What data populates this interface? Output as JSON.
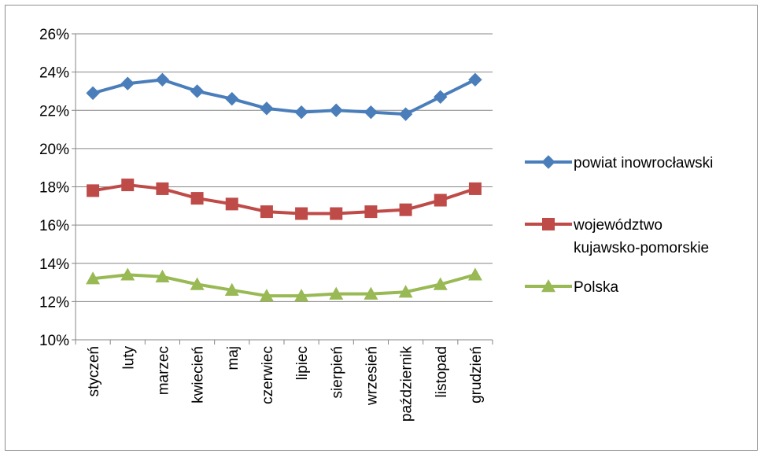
{
  "chart_data": {
    "type": "line",
    "categories": [
      "styczeń",
      "luty",
      "marzec",
      "kwiecień",
      "maj",
      "czerwiec",
      "lipiec",
      "sierpień",
      "wrzesień",
      "październik",
      "listopad",
      "grudzień"
    ],
    "y_ticks": [
      "10%",
      "12%",
      "14%",
      "16%",
      "18%",
      "20%",
      "22%",
      "24%",
      "26%"
    ],
    "ylim": [
      10,
      26
    ],
    "y_unit": "%",
    "grid": "horizontal",
    "legend_position": "right",
    "series": [
      {
        "name": "powiat inowrocławski",
        "color": "#4a7ebb",
        "marker": "diamond",
        "values": [
          22.9,
          23.4,
          23.6,
          23.0,
          22.6,
          22.1,
          21.9,
          22.0,
          21.9,
          21.8,
          22.7,
          23.6
        ]
      },
      {
        "name": "województwo",
        "name_line2": "kujawsko-pomorskie",
        "color": "#be4b48",
        "marker": "square",
        "values": [
          17.8,
          18.1,
          17.9,
          17.4,
          17.1,
          16.7,
          16.6,
          16.6,
          16.7,
          16.8,
          17.3,
          17.9
        ]
      },
      {
        "name": "Polska",
        "color": "#98b954",
        "marker": "triangle",
        "values": [
          13.2,
          13.4,
          13.3,
          12.9,
          12.6,
          12.3,
          12.3,
          12.4,
          12.4,
          12.5,
          12.9,
          13.4
        ]
      }
    ]
  }
}
